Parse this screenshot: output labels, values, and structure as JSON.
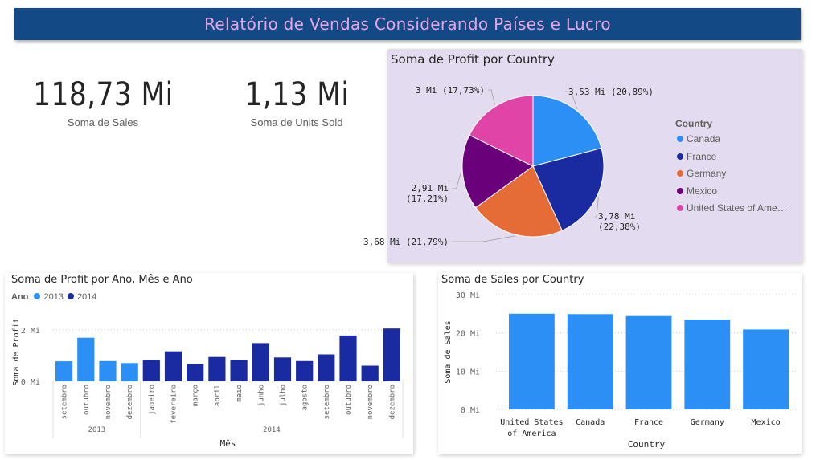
{
  "header": {
    "title": "Relatório de Vendas Considerando Países e Lucro"
  },
  "kpis": [
    {
      "value": "118,73 Mi",
      "label": "Soma de  Sales"
    },
    {
      "value": "1,13 Mi",
      "label": "Soma de Units Sold"
    }
  ],
  "colors": {
    "c2013": "#2b8ff5",
    "c2014": "#1a2aa0",
    "sales_bar": "#2b8ff5"
  },
  "chart_data": [
    {
      "type": "pie",
      "title": "Soma de Profit por Country",
      "legend_title": "Country",
      "legend_position": "right",
      "slices": [
        {
          "name": "Canada",
          "value": 3.53,
          "label": "3,53 Mi (20,89%)",
          "color": "#2b8ff5"
        },
        {
          "name": "France",
          "value": 3.78,
          "label": "3,78 Mi\n(22,38%)",
          "color": "#1a2aa0"
        },
        {
          "name": "Germany",
          "value": 3.68,
          "label": "3,68 Mi (21,79%)",
          "color": "#e66c37"
        },
        {
          "name": "Mexico",
          "value": 2.91,
          "label": "2,91 Mi\n(17,21%)",
          "color": "#6b007b"
        },
        {
          "name": "United States of Ame…",
          "value": 3.0,
          "label": "3 Mi (17,73%)",
          "color": "#e044a7"
        }
      ]
    },
    {
      "type": "bar",
      "title": "Soma de Profit por Ano, Mês e Ano",
      "legend_title": "Ano",
      "legend_position": "top-left",
      "xlabel": "Mês",
      "ylabel": "Soma de Profit",
      "yticks": [
        "0 Mi",
        "2 Mi"
      ],
      "ylim": [
        0,
        2.6
      ],
      "groups": [
        {
          "name": "2013",
          "months": [
            "setembro",
            "outubro",
            "novembro",
            "dezembro"
          ],
          "values": [
            0.78,
            1.7,
            0.79,
            0.71
          ]
        },
        {
          "name": "2014",
          "months": [
            "janeiro",
            "fevereiro",
            "março",
            "abril",
            "maio",
            "junho",
            "julho",
            "agosto",
            "setembro",
            "outubro",
            "novembro",
            "dezembro"
          ],
          "values": [
            0.84,
            1.17,
            0.68,
            0.95,
            0.84,
            1.49,
            0.93,
            0.79,
            1.05,
            1.79,
            0.61,
            2.06
          ]
        }
      ],
      "grid": true
    },
    {
      "type": "bar",
      "title": "Soma de Sales por Country",
      "xlabel": "Country",
      "ylabel": "Soma de Sales",
      "yticks": [
        "0 Mi",
        "10 Mi",
        "20 Mi",
        "30 Mi"
      ],
      "ylim": [
        0,
        30
      ],
      "categories": [
        "United States\nof America",
        "Canada",
        "France",
        "Germany",
        "Mexico"
      ],
      "values": [
        25.0,
        24.9,
        24.4,
        23.5,
        20.9
      ],
      "grid": true
    }
  ]
}
